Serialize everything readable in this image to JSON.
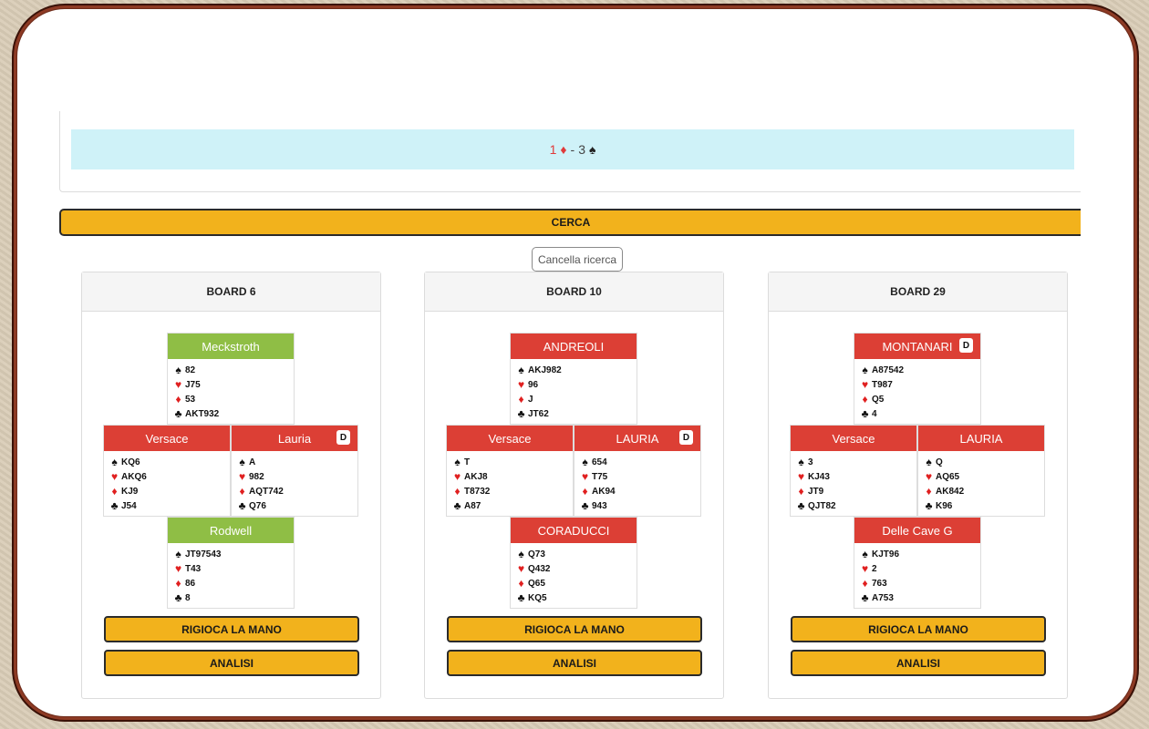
{
  "contract": {
    "level1": "1",
    "suit1": "♦",
    "sep": "-",
    "level2": "3",
    "suit2": "♠"
  },
  "search_button": "CERCA",
  "clear_button": "Cancella ricerca",
  "boards": [
    {
      "title": "BOARD 6",
      "north": {
        "name": "Meckstroth",
        "color": "green",
        "dealer": "",
        "s": "82",
        "h": "J75",
        "d": "53",
        "c": "AKT932"
      },
      "west": {
        "name": "Versace",
        "color": "red",
        "dealer": "",
        "s": "KQ6",
        "h": "AKQ6",
        "d": "KJ9",
        "c": "J54"
      },
      "east": {
        "name": "Lauria",
        "color": "red",
        "dealer": "D",
        "s": "A",
        "h": "982",
        "d": "AQT742",
        "c": "Q76"
      },
      "south": {
        "name": "Rodwell",
        "color": "green",
        "dealer": "",
        "s": "JT97543",
        "h": "T43",
        "d": "86",
        "c": "8"
      },
      "replay": "RIGIOCA LA MANO",
      "analysis": "ANALISI"
    },
    {
      "title": "BOARD 10",
      "north": {
        "name": "ANDREOLI",
        "color": "red",
        "dealer": "",
        "s": "AKJ982",
        "h": "96",
        "d": "J",
        "c": "JT62"
      },
      "west": {
        "name": "Versace",
        "color": "red",
        "dealer": "",
        "s": "T",
        "h": "AKJ8",
        "d": "T8732",
        "c": "A87"
      },
      "east": {
        "name": "LAURIA",
        "color": "red",
        "dealer": "D",
        "s": "654",
        "h": "T75",
        "d": "AK94",
        "c": "943"
      },
      "south": {
        "name": "CORADUCCI",
        "color": "red",
        "dealer": "",
        "s": "Q73",
        "h": "Q432",
        "d": "Q65",
        "c": "KQ5"
      },
      "replay": "RIGIOCA LA MANO",
      "analysis": "ANALISI"
    },
    {
      "title": "BOARD 29",
      "north": {
        "name": "MONTANARI",
        "color": "red",
        "dealer": "D",
        "s": "A87542",
        "h": "T987",
        "d": "Q5",
        "c": "4"
      },
      "west": {
        "name": "Versace",
        "color": "red",
        "dealer": "",
        "s": "3",
        "h": "KJ43",
        "d": "JT9",
        "c": "QJT82"
      },
      "east": {
        "name": "LAURIA",
        "color": "red",
        "dealer": "",
        "s": "Q",
        "h": "AQ65",
        "d": "AK842",
        "c": "K96"
      },
      "south": {
        "name": "Delle Cave G",
        "color": "red",
        "dealer": "",
        "s": "KJT96",
        "h": "2",
        "d": "763",
        "c": "A753"
      },
      "replay": "RIGIOCA LA MANO",
      "analysis": "ANALISI"
    }
  ]
}
